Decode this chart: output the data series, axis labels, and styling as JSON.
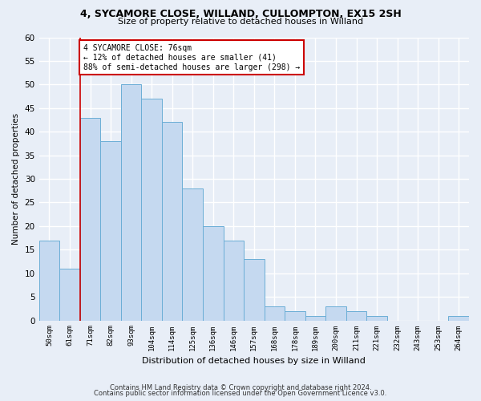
{
  "title1": "4, SYCAMORE CLOSE, WILLAND, CULLOMPTON, EX15 2SH",
  "title2": "Size of property relative to detached houses in Willand",
  "xlabel": "Distribution of detached houses by size in Willand",
  "ylabel": "Number of detached properties",
  "bar_labels": [
    "50sqm",
    "61sqm",
    "71sqm",
    "82sqm",
    "93sqm",
    "104sqm",
    "114sqm",
    "125sqm",
    "136sqm",
    "146sqm",
    "157sqm",
    "168sqm",
    "178sqm",
    "189sqm",
    "200sqm",
    "211sqm",
    "221sqm",
    "232sqm",
    "243sqm",
    "253sqm",
    "264sqm"
  ],
  "bar_values": [
    17,
    11,
    43,
    38,
    50,
    47,
    42,
    28,
    20,
    17,
    13,
    3,
    2,
    1,
    3,
    2,
    1,
    0,
    0,
    0,
    1
  ],
  "bar_color": "#c5d9f0",
  "bar_edge_color": "#6baed6",
  "annotation_text_line1": "4 SYCAMORE CLOSE: 76sqm",
  "annotation_text_line2": "← 12% of detached houses are smaller (41)",
  "annotation_text_line3": "88% of semi-detached houses are larger (298) →",
  "vline_color": "#cc0000",
  "vline_x_index": 2,
  "background_color": "#e8eef7",
  "plot_bg_color": "#e8eef7",
  "grid_color": "#ffffff",
  "footer1": "Contains HM Land Registry data © Crown copyright and database right 2024.",
  "footer2": "Contains public sector information licensed under the Open Government Licence v3.0.",
  "ylim": [
    0,
    60
  ],
  "yticks": [
    0,
    5,
    10,
    15,
    20,
    25,
    30,
    35,
    40,
    45,
    50,
    55,
    60
  ]
}
